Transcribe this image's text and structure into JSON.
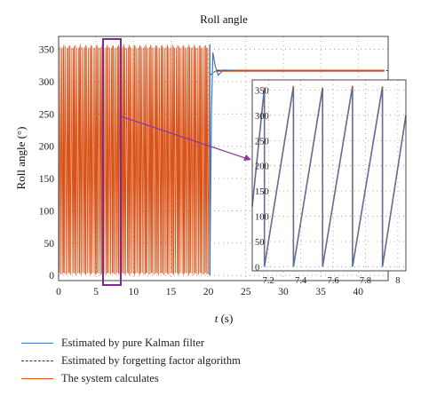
{
  "chart_data": [
    {
      "type": "line",
      "title": "Roll angle",
      "xlabel_var": "t",
      "xlabel_unit": " (s)",
      "ylabel": "Roll angle (°)",
      "xlim": [
        0,
        44
      ],
      "ylim": [
        -8,
        370
      ],
      "xticks": [
        0,
        5,
        10,
        15,
        20,
        25,
        30,
        35,
        40
      ],
      "yticks": [
        0,
        50,
        100,
        150,
        200,
        250,
        300,
        350
      ],
      "grid": true,
      "legend_position": "below",
      "series": [
        {
          "name": "Estimated by pure Kalman filter",
          "color": "#3a78c2",
          "x": [
            20.2,
            20.4,
            20.6,
            20.9,
            21.3,
            22,
            24,
            30,
            40,
            43.5
          ],
          "y": [
            0,
            250,
            345,
            325,
            310,
            318,
            317,
            317,
            317,
            317
          ]
        },
        {
          "name": "Estimated by forgetting factor algorithm",
          "color": "#333333",
          "x": [
            20.2,
            21,
            44
          ],
          "y": [
            310,
            317,
            317
          ]
        },
        {
          "name": "The system calculates",
          "color": "#d95319",
          "x_range": [
            0,
            43.5
          ],
          "oscillation_range_before_s": [
            0,
            20.2
          ],
          "oscillation_y_range": [
            0,
            358
          ],
          "steady_value_after": 317
        }
      ]
    },
    {
      "type": "line",
      "title": "",
      "inset_of": "Roll angle",
      "zoom_x_range": [
        6.2,
        8.3
      ],
      "xlim": [
        7.1,
        8.05
      ],
      "ylim": [
        -8,
        370
      ],
      "xticks": [
        7.2,
        7.4,
        7.6,
        7.8,
        8
      ],
      "yticks": [
        0,
        50,
        100,
        150,
        200,
        250,
        300,
        350
      ],
      "grid": true,
      "series": [
        {
          "name": "The system calculates",
          "color": "#d95319",
          "x": [
            7.1,
            7.175,
            7.175,
            7.355,
            7.355,
            7.535,
            7.535,
            7.72,
            7.72,
            7.905,
            7.905,
            8.05
          ],
          "y": [
            120,
            355,
            0,
            358,
            0,
            355,
            0,
            358,
            0,
            357,
            0,
            300
          ]
        },
        {
          "name": "Estimated by pure Kalman filter",
          "color": "#3a78c2",
          "x": [
            7.1,
            7.175,
            7.175,
            7.355,
            7.355,
            7.535,
            7.535,
            7.72,
            7.72,
            7.905,
            7.905,
            8.05
          ],
          "y": [
            118,
            352,
            0,
            355,
            0,
            352,
            0,
            355,
            0,
            354,
            0,
            298
          ]
        }
      ]
    }
  ],
  "legend": [
    {
      "label": "Estimated by pure Kalman filter",
      "color": "#3a78c2",
      "style": "solid"
    },
    {
      "label": "Estimated by forgetting factor algorithm",
      "color": "#333333",
      "style": "dashed"
    },
    {
      "label": "The system calculates",
      "color": "#d95319",
      "style": "solid"
    }
  ]
}
